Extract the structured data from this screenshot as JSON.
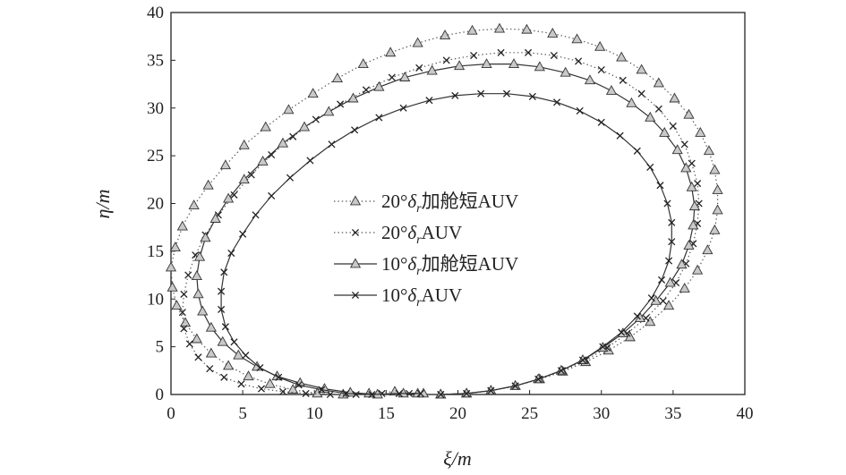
{
  "chart_data": {
    "type": "line",
    "xlabel": "ξ/m",
    "ylabel": "η/m",
    "xlim": [
      0,
      40
    ],
    "ylim": [
      0,
      40
    ],
    "xticks": [
      0,
      5,
      10,
      15,
      20,
      25,
      30,
      35,
      40
    ],
    "yticks": [
      0,
      5,
      10,
      15,
      20,
      25,
      30,
      35,
      40
    ],
    "grid": false,
    "legend_position": "center",
    "legend": [
      {
        "prefix": "20°",
        "delta": "δ",
        "sub": "r",
        "suffix": "加舱短AUV",
        "marker": "triangle",
        "line": "dotted"
      },
      {
        "prefix": "20°",
        "delta": "δ",
        "sub": "r",
        "suffix": "AUV",
        "marker": "x",
        "line": "dotted"
      },
      {
        "prefix": "10°",
        "delta": "δ",
        "sub": "r",
        "suffix": "加舱短AUV",
        "marker": "triangle",
        "line": "solid"
      },
      {
        "prefix": "10°",
        "delta": "δ",
        "sub": "r",
        "suffix": "AUV",
        "marker": "x",
        "line": "solid"
      }
    ],
    "series": [
      {
        "name": "20°δr加舱短AUV",
        "marker": "triangle",
        "line": "dotted",
        "x": [
          18.8,
          20.6,
          22.3,
          24.0,
          25.7,
          27.3,
          28.9,
          30.5,
          32.0,
          33.4,
          34.7,
          35.8,
          36.7,
          37.4,
          37.9,
          38.1,
          38.1,
          37.9,
          37.5,
          36.9,
          36.1,
          35.1,
          34.0,
          32.8,
          31.4,
          29.9,
          28.3,
          26.6,
          24.8,
          22.9,
          21.0,
          19.1,
          17.2,
          15.3,
          13.4,
          11.6,
          9.9,
          8.2,
          6.6,
          5.1,
          3.8,
          2.6,
          1.6,
          0.8,
          0.3,
          0.0,
          0.1,
          0.4,
          1.0,
          1.8,
          2.8,
          4.0,
          5.4,
          6.9,
          8.5,
          10.2,
          12.0,
          13.8,
          15.6,
          17.2
        ],
        "y": [
          0.0,
          0.1,
          0.4,
          0.9,
          1.6,
          2.4,
          3.4,
          4.6,
          6.0,
          7.6,
          9.3,
          11.1,
          13.0,
          15.1,
          17.2,
          19.3,
          21.4,
          23.5,
          25.5,
          27.4,
          29.3,
          31.0,
          32.6,
          34.0,
          35.3,
          36.4,
          37.2,
          37.8,
          38.2,
          38.3,
          38.1,
          37.6,
          36.8,
          35.8,
          34.6,
          33.1,
          31.5,
          29.8,
          28.0,
          26.1,
          24.0,
          21.9,
          19.8,
          17.6,
          15.4,
          13.3,
          11.2,
          9.3,
          7.5,
          5.8,
          4.3,
          3.0,
          1.9,
          1.1,
          0.5,
          0.1,
          0.0,
          0.1,
          0.3,
          0.1
        ]
      },
      {
        "name": "20°δrAUV",
        "marker": "x",
        "line": "dotted",
        "x": [
          18.8,
          20.6,
          22.3,
          24.0,
          25.7,
          27.3,
          28.9,
          30.4,
          31.8,
          33.1,
          34.3,
          35.2,
          35.9,
          36.4,
          36.7,
          36.8,
          36.7,
          36.3,
          35.8,
          35.0,
          34.0,
          32.8,
          31.5,
          30.0,
          28.4,
          26.7,
          24.9,
          23.0,
          21.1,
          19.2,
          17.3,
          15.4,
          13.6,
          11.8,
          10.1,
          8.5,
          7.0,
          5.6,
          4.4,
          3.3,
          2.4,
          1.7,
          1.2,
          0.9,
          0.8,
          0.9,
          1.3,
          1.9,
          2.7,
          3.7,
          4.9,
          6.3,
          7.8,
          9.4,
          11.1,
          12.9,
          14.7,
          16.6
        ],
        "y": [
          0.0,
          0.1,
          0.4,
          0.9,
          1.6,
          2.5,
          3.6,
          4.9,
          6.4,
          8.0,
          9.8,
          11.7,
          13.7,
          15.8,
          17.9,
          20.0,
          22.1,
          24.2,
          26.2,
          28.1,
          29.9,
          31.5,
          32.9,
          34.0,
          34.9,
          35.5,
          35.8,
          35.8,
          35.5,
          35.0,
          34.2,
          33.2,
          31.9,
          30.4,
          28.8,
          27.0,
          25.1,
          23.0,
          20.9,
          18.8,
          16.7,
          14.6,
          12.5,
          10.5,
          8.6,
          6.9,
          5.3,
          3.9,
          2.7,
          1.8,
          1.1,
          0.6,
          0.3,
          0.1,
          0.0,
          0.0,
          0.1,
          0.1
        ]
      },
      {
        "name": "10°δr加舱短AUV",
        "marker": "triangle",
        "line": "solid",
        "x": [
          18.8,
          20.6,
          22.3,
          24.0,
          25.6,
          27.2,
          28.7,
          30.1,
          31.5,
          32.7,
          33.8,
          34.8,
          35.6,
          36.1,
          36.4,
          36.5,
          36.3,
          35.9,
          35.3,
          34.4,
          33.4,
          32.1,
          30.7,
          29.2,
          27.5,
          25.7,
          23.9,
          22.0,
          20.1,
          18.2,
          16.3,
          14.5,
          12.7,
          11.0,
          9.3,
          7.8,
          6.4,
          5.1,
          4.0,
          3.1,
          2.4,
          2.0,
          1.8,
          1.9,
          2.2,
          2.8,
          3.6,
          4.7,
          6.0,
          7.4,
          9.0,
          10.7,
          12.5,
          14.4,
          16.2,
          17.6
        ],
        "y": [
          0.0,
          0.1,
          0.4,
          0.9,
          1.6,
          2.5,
          3.6,
          4.9,
          6.4,
          8.0,
          9.8,
          11.7,
          13.6,
          15.6,
          17.7,
          19.7,
          21.7,
          23.7,
          25.6,
          27.4,
          29.0,
          30.5,
          31.8,
          32.9,
          33.7,
          34.3,
          34.6,
          34.6,
          34.4,
          33.9,
          33.2,
          32.2,
          31.0,
          29.6,
          28.0,
          26.3,
          24.4,
          22.5,
          20.5,
          18.4,
          16.4,
          14.4,
          12.4,
          10.5,
          8.7,
          7.0,
          5.5,
          4.1,
          2.9,
          1.9,
          1.2,
          0.6,
          0.2,
          0.0,
          0.1,
          0.1
        ]
      },
      {
        "name": "10°δrAUV",
        "marker": "x",
        "line": "solid",
        "x": [
          18.8,
          20.6,
          22.3,
          24.0,
          25.6,
          27.2,
          28.7,
          30.1,
          31.4,
          32.5,
          33.5,
          34.2,
          34.7,
          34.9,
          34.9,
          34.6,
          34.1,
          33.4,
          32.5,
          31.3,
          30.0,
          28.5,
          26.9,
          25.2,
          23.4,
          21.6,
          19.8,
          18.0,
          16.2,
          14.5,
          12.8,
          11.2,
          9.7,
          8.3,
          7.0,
          5.9,
          5.0,
          4.2,
          3.7,
          3.5,
          3.5,
          3.8,
          4.4,
          5.2,
          6.2,
          7.5,
          8.9,
          10.5,
          12.2,
          14.0,
          15.9,
          17.4
        ],
        "y": [
          0.0,
          0.1,
          0.4,
          0.9,
          1.6,
          2.5,
          3.6,
          5.0,
          6.5,
          8.2,
          10.1,
          12.0,
          14.0,
          16.0,
          18.0,
          20.0,
          21.9,
          23.8,
          25.5,
          27.1,
          28.5,
          29.7,
          30.6,
          31.2,
          31.5,
          31.5,
          31.3,
          30.8,
          30.0,
          29.0,
          27.7,
          26.2,
          24.5,
          22.7,
          20.8,
          18.8,
          16.8,
          14.8,
          12.8,
          10.8,
          8.9,
          7.1,
          5.5,
          4.1,
          2.8,
          1.8,
          1.0,
          0.5,
          0.1,
          0.0,
          0.1,
          0.1
        ]
      }
    ]
  }
}
